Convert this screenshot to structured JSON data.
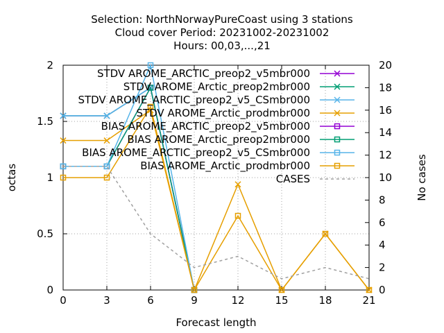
{
  "title_lines": [
    "Selection: NorthNorwayPureCoast using     3 stations",
    "Cloud cover   Period: 20231002-20231002",
    "Hours:  00,03,...,21"
  ],
  "chart_data": {
    "type": "line",
    "xlabel": "Forecast length",
    "ylabel": "octas",
    "y2label": "No cases",
    "x": [
      0,
      3,
      6,
      9,
      12,
      15,
      18,
      21
    ],
    "xlim": [
      0,
      21
    ],
    "ylim": [
      0,
      2
    ],
    "y2lim": [
      0,
      20
    ],
    "xticks": [
      "0",
      "3",
      "6",
      "9",
      "12",
      "15",
      "18",
      "21"
    ],
    "yticks": [
      "0",
      "0.5",
      "1",
      "1.5",
      "2"
    ],
    "y2ticks": [
      "0",
      "2",
      "4",
      "6",
      "8",
      "10",
      "12",
      "14",
      "16",
      "18",
      "20"
    ],
    "grid": true,
    "legend_position": "top-right",
    "series": [
      {
        "name": "STDV AROME_ARCTIC_preop2_v5mbr000",
        "color": "#9400d3",
        "marker": "x",
        "x": [
          0,
          3,
          6,
          9
        ],
        "values": [
          1.55,
          1.55,
          1.8,
          0
        ]
      },
      {
        "name": "STDV AROME_Arctic_preop2mbr000",
        "color": "#009e73",
        "marker": "x",
        "x": [
          0,
          3,
          6,
          9
        ],
        "values": [
          1.55,
          1.55,
          1.8,
          0
        ]
      },
      {
        "name": "STDV AROME_ARCTIC_preop2_v5_CSmbr000",
        "color": "#56b4e9",
        "marker": "x",
        "x": [
          0,
          3,
          6,
          9
        ],
        "values": [
          1.55,
          1.55,
          1.8,
          0
        ]
      },
      {
        "name": "STDV AROME_Arctic_prodmbr000",
        "color": "#e69f00",
        "marker": "x",
        "x": [
          0,
          3,
          6,
          9,
          12,
          15,
          18,
          21
        ],
        "values": [
          1.33,
          1.33,
          1.6,
          0,
          0.94,
          0,
          0.5,
          0
        ]
      },
      {
        "name": "BIAS AROME_ARCTIC_preop2_v5mbr000",
        "color": "#9400d3",
        "marker": "square",
        "x": [
          0,
          3,
          6,
          9
        ],
        "values": [
          1.1,
          1.1,
          1.8,
          0
        ]
      },
      {
        "name": "BIAS AROME_Arctic_preop2mbr000",
        "color": "#009e73",
        "marker": "square",
        "x": [
          0,
          3,
          6,
          9
        ],
        "values": [
          1.1,
          1.1,
          1.8,
          0
        ]
      },
      {
        "name": "BIAS AROME_ARCTIC_preop2_v5_CSmbr000",
        "color": "#56b4e9",
        "marker": "square",
        "x": [
          0,
          3,
          6,
          9
        ],
        "values": [
          1.1,
          1.1,
          2.0,
          0
        ]
      },
      {
        "name": "BIAS AROME_Arctic_prodmbr000",
        "color": "#e69f00",
        "marker": "square",
        "x": [
          0,
          3,
          6,
          9,
          12,
          15,
          18,
          21
        ],
        "values": [
          1.0,
          1.0,
          1.63,
          0,
          0.66,
          0,
          0.5,
          0
        ]
      },
      {
        "name": "CASES",
        "color": "#a0a0a0",
        "marker": "none",
        "dashed": true,
        "axis": "y2",
        "x": [
          0,
          3,
          6,
          9,
          12,
          15,
          18,
          21
        ],
        "values": [
          11,
          11,
          5,
          2,
          3,
          1,
          2,
          1
        ]
      }
    ]
  }
}
